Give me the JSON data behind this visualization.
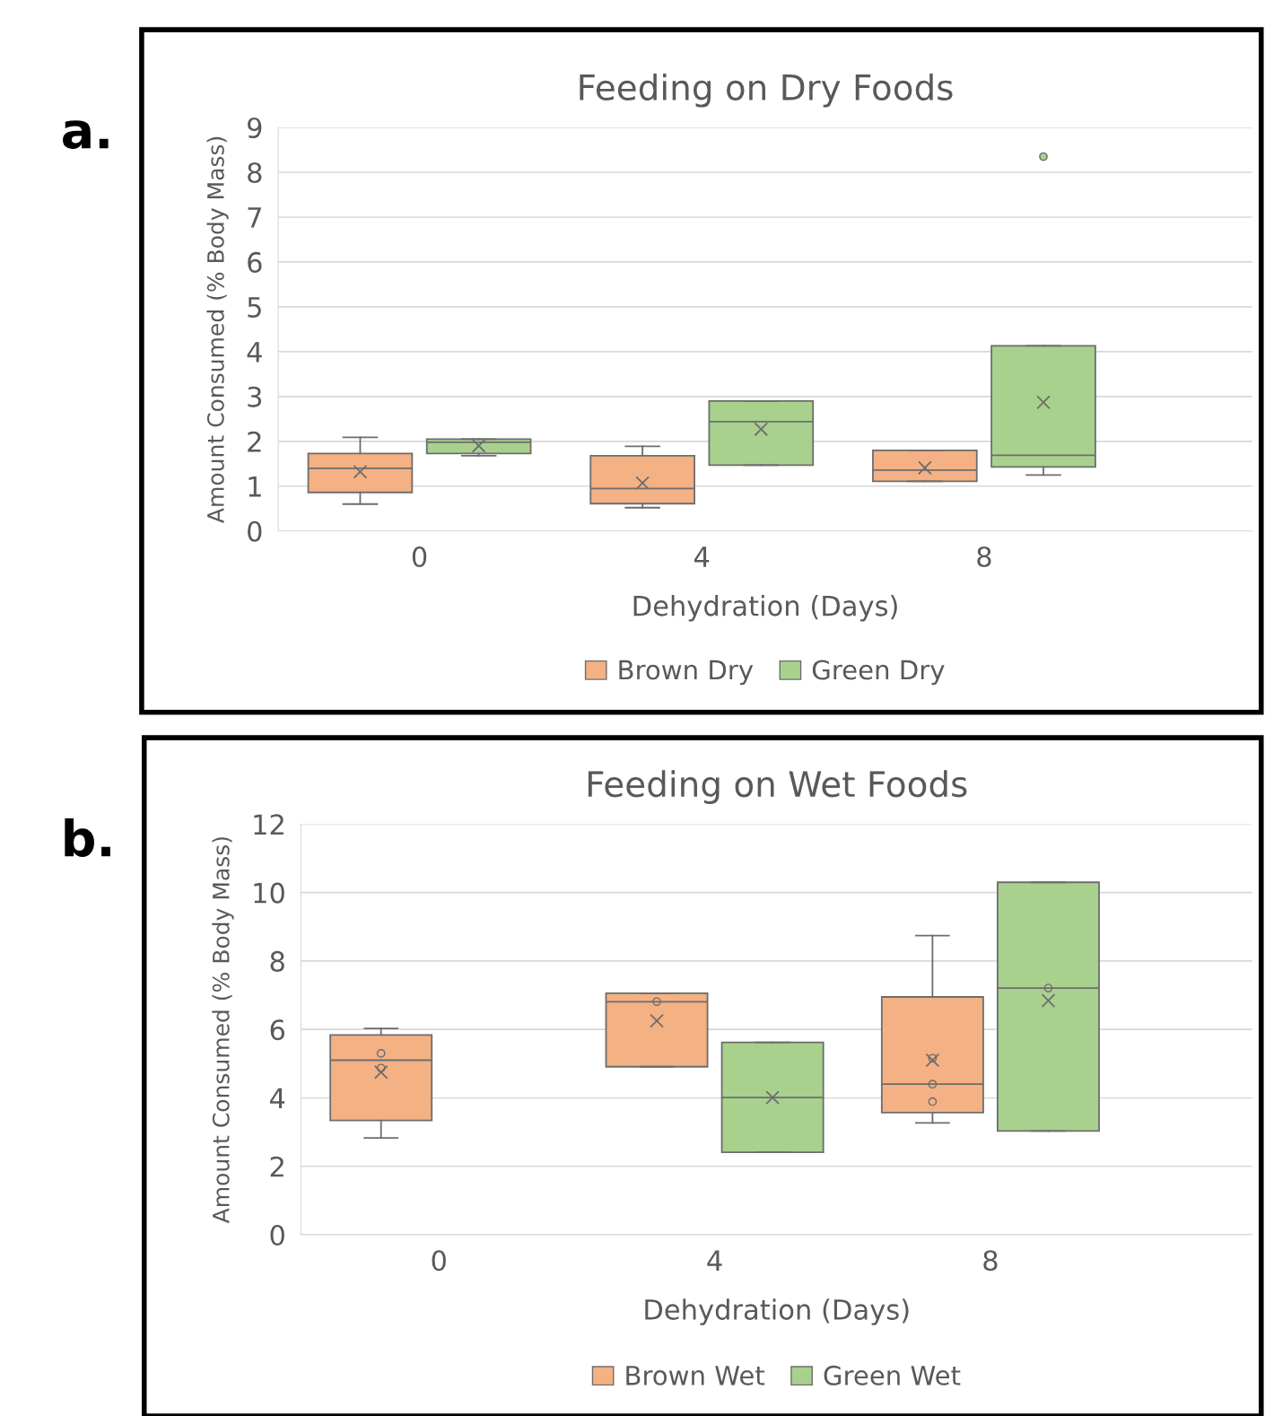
{
  "chart_data": [
    {
      "type": "box",
      "title": "Feeding on Dry Foods",
      "xlabel": "Dehydration (Days)",
      "ylabel": "Amount Consumed (% Body Mass)",
      "annotations": [
        "a."
      ],
      "categories": [
        "0",
        "4",
        "8"
      ],
      "ylim": [
        0,
        9
      ],
      "yticks": [
        0,
        1,
        2,
        3,
        4,
        5,
        6,
        7,
        8,
        9
      ],
      "grid": "y",
      "legend": "bottom",
      "series": [
        {
          "name": "Brown Dry",
          "color": "#f4b183",
          "boxes": [
            {
              "low": 0.6,
              "q1": 0.86,
              "median": 1.4,
              "q3": 1.73,
              "high": 2.09,
              "mean": 1.32
            },
            {
              "low": 0.52,
              "q1": 0.61,
              "median": 0.95,
              "q3": 1.68,
              "high": 1.89,
              "mean": 1.07
            },
            {
              "low": 1.11,
              "q1": 1.11,
              "median": 1.36,
              "q3": 1.8,
              "high": 1.8,
              "mean": 1.41
            }
          ]
        },
        {
          "name": "Green Dry",
          "color": "#a9d18e",
          "boxes": [
            {
              "low": 1.68,
              "q1": 1.73,
              "median": 1.98,
              "q3": 2.05,
              "high": 2.05,
              "mean": 1.9
            },
            {
              "low": 1.47,
              "q1": 1.47,
              "median": 2.44,
              "q3": 2.9,
              "high": 2.9,
              "mean": 2.27
            },
            {
              "low": 1.25,
              "q1": 1.43,
              "median": 1.69,
              "q3": 4.13,
              "high": 4.13,
              "mean": 2.87,
              "outliers": [
                8.35
              ]
            }
          ]
        }
      ]
    },
    {
      "type": "box",
      "title": "Feeding on Wet Foods",
      "xlabel": "Dehydration (Days)",
      "ylabel": "Amount Consumed (% Body Mass)",
      "annotations": [
        "b."
      ],
      "categories": [
        "0",
        "4",
        "8"
      ],
      "ylim": [
        0,
        12
      ],
      "yticks": [
        0,
        2,
        4,
        6,
        8,
        10,
        12
      ],
      "grid": "y",
      "legend": "bottom",
      "series": [
        {
          "name": "Brown Wet",
          "color": "#f4b183",
          "boxes": [
            {
              "low": 2.83,
              "q1": 3.34,
              "median": 5.1,
              "q3": 5.84,
              "high": 6.03,
              "mean": 4.75,
              "outliers": [
                5.3,
                4.87
              ]
            },
            {
              "low": 4.91,
              "q1": 4.91,
              "median": 6.81,
              "q3": 7.06,
              "high": 7.06,
              "mean": 6.25,
              "outliers": [
                6.81
              ]
            },
            {
              "low": 3.27,
              "q1": 3.57,
              "median": 4.4,
              "q3": 6.95,
              "high": 8.74,
              "mean": 5.1,
              "outliers": [
                5.16,
                4.4,
                3.89
              ]
            }
          ]
        },
        {
          "name": "Green Wet",
          "color": "#a9d18e",
          "boxes": [
            null,
            {
              "low": 2.41,
              "q1": 2.41,
              "median": 4.01,
              "q3": 5.62,
              "high": 5.62,
              "mean": 4.01
            },
            {
              "low": 3.03,
              "q1": 3.03,
              "median": 7.21,
              "q3": 10.3,
              "high": 10.3,
              "mean": 6.84,
              "outliers": [
                7.21
              ]
            }
          ]
        }
      ]
    }
  ]
}
